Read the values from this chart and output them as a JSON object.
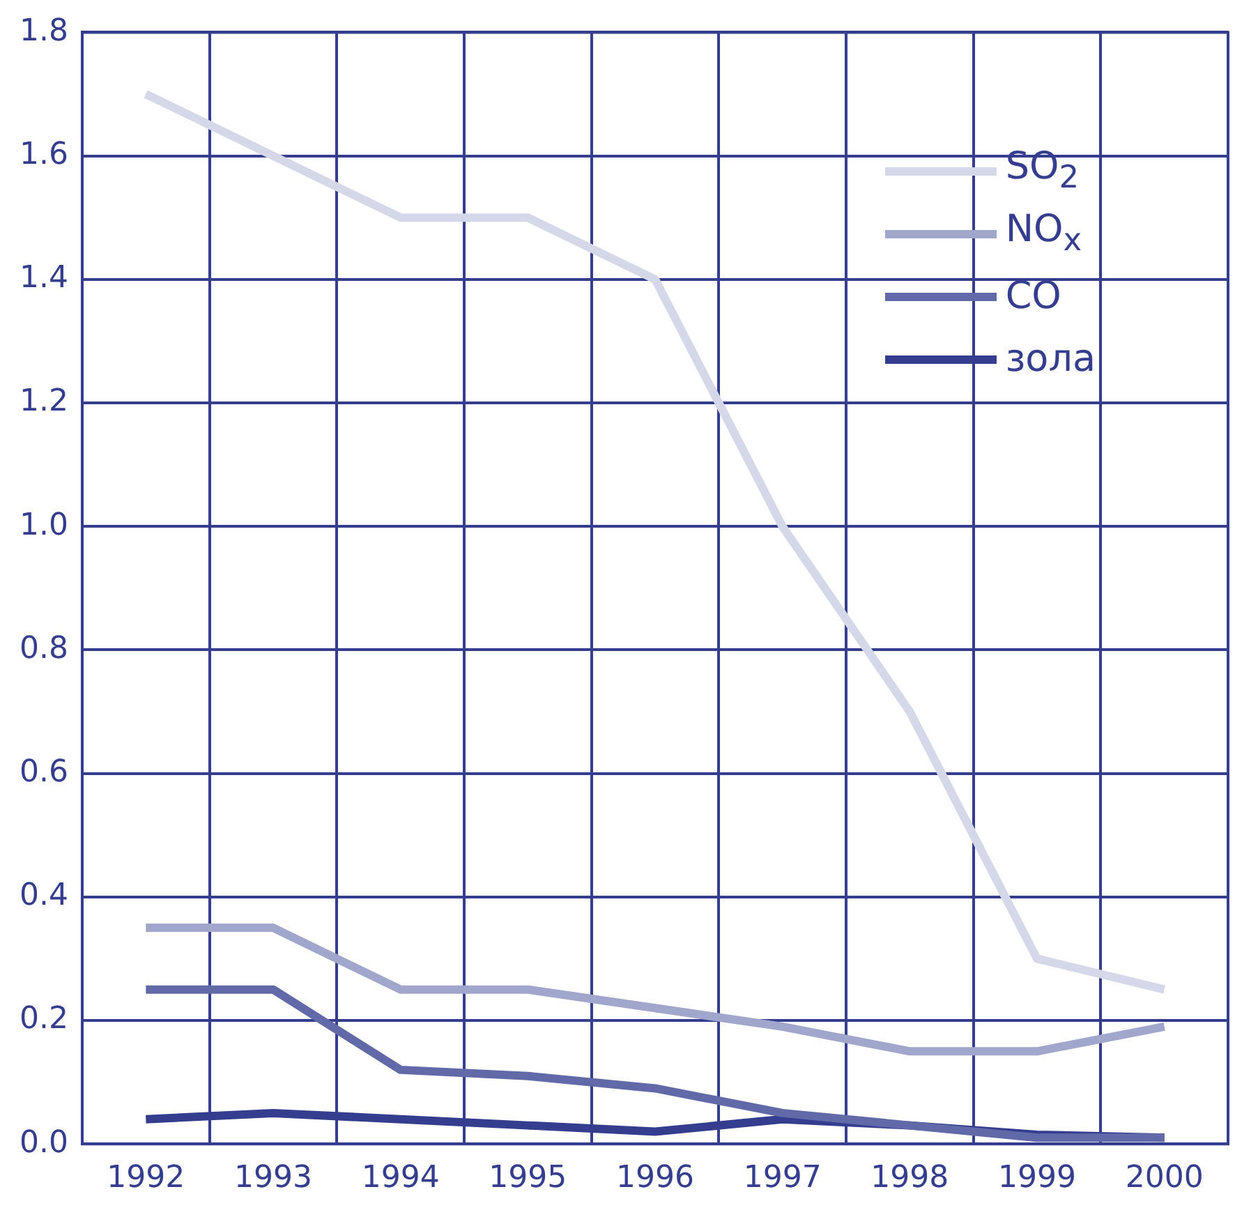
{
  "chart_data": {
    "type": "line",
    "categories": [
      "1992",
      "1993",
      "1994",
      "1995",
      "1996",
      "1997",
      "1998",
      "1999",
      "2000"
    ],
    "series": [
      {
        "name": "SO$_{2}$",
        "color": "#d5d8e8",
        "values": [
          1.7,
          1.6,
          1.5,
          1.5,
          1.4,
          1.0,
          0.7,
          0.3,
          0.25
        ]
      },
      {
        "name": "NO$_{x}$",
        "color": "#a0a6cc",
        "values": [
          0.35,
          0.35,
          0.25,
          0.25,
          0.22,
          0.19,
          0.15,
          0.15,
          0.19
        ]
      },
      {
        "name": "CO",
        "color": "#6269a8",
        "values": [
          0.25,
          0.25,
          0.12,
          0.11,
          0.09,
          0.05,
          0.03,
          0.01,
          0.01
        ]
      },
      {
        "name": "зола",
        "color": "#353d8e",
        "values": [
          0.04,
          0.05,
          0.04,
          0.03,
          0.02,
          0.04,
          0.03,
          0.015,
          0.01
        ]
      }
    ],
    "ylim": [
      0,
      1.8
    ],
    "yticks": [
      {
        "value": 0,
        "label": "0.0"
      },
      {
        "value": 0.2,
        "label": "0.2"
      },
      {
        "value": 0.4,
        "label": "0.4"
      },
      {
        "value": 0.6,
        "label": "0.6"
      },
      {
        "value": 0.8,
        "label": "0.8"
      },
      {
        "value": 1.0,
        "label": "1.0"
      },
      {
        "value": 1.2,
        "label": "1.2"
      },
      {
        "value": 1.4,
        "label": "1.4"
      },
      {
        "value": 1.6,
        "label": "1.6"
      },
      {
        "value": 1.8,
        "label": "1.8"
      }
    ],
    "grid": true,
    "legend": "top right",
    "marker": "none",
    "line_style": "solid"
  }
}
